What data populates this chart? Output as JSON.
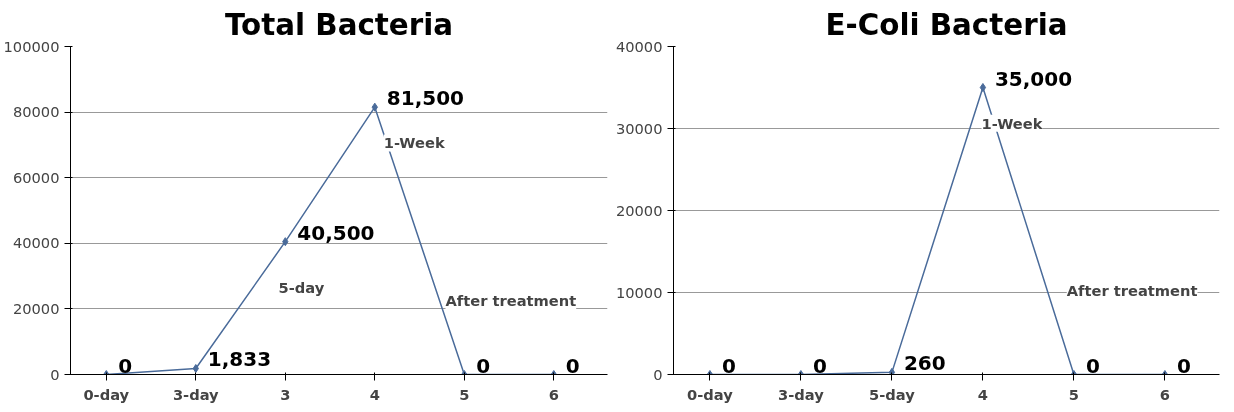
{
  "chart_data": [
    {
      "type": "line",
      "title": "Total Bacteria",
      "categories": [
        "0-day",
        "3-day",
        "3",
        "4",
        "5",
        "6"
      ],
      "series": [
        {
          "color": "#4a6b9a",
          "values": [
            0,
            1833,
            40500,
            81500,
            0,
            0
          ],
          "value_labels": [
            "0",
            "1,833",
            "40,500",
            "81,500",
            "0",
            "0"
          ]
        }
      ],
      "ylim": [
        0,
        100000
      ],
      "yticks": [
        0,
        20000,
        40000,
        60000,
        80000,
        100000
      ],
      "grid": "y",
      "marker": "diamond",
      "annotations": [
        "5-day",
        "1-Week",
        "After treatment"
      ]
    },
    {
      "type": "line",
      "title": "E-Coli Bacteria",
      "categories": [
        "0-day",
        "3-day",
        "5-day",
        "4",
        "5",
        "6"
      ],
      "series": [
        {
          "color": "#4a6b9a",
          "values": [
            0,
            0,
            260,
            35000,
            0,
            0
          ],
          "value_labels": [
            "0",
            "0",
            "260",
            "35,000",
            "0",
            "0"
          ]
        }
      ],
      "ylim": [
        0,
        40000
      ],
      "yticks": [
        0,
        10000,
        20000,
        30000,
        40000
      ],
      "grid": "y",
      "marker": "diamond",
      "annotations": [
        "1-Week",
        "After treatment"
      ]
    }
  ]
}
